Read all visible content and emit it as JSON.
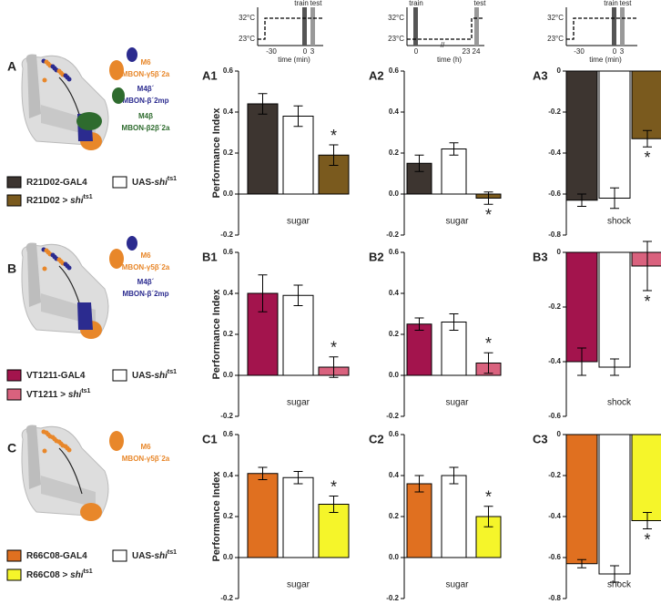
{
  "rows": [
    {
      "label": "A",
      "neurons": [
        {
          "name": "M6",
          "full": "MBON-γ5β´2a",
          "color": "#e8872a"
        },
        {
          "name": "M4β´",
          "full": "MBON-β´2mp",
          "color": "#2b2b8f"
        },
        {
          "name": "M4β",
          "full": "MBON-β2β´2a",
          "color": "#2e6b2e"
        }
      ],
      "legend": [
        {
          "text": "R21D02-GAL4",
          "color": "#3d3530"
        },
        {
          "text": "UAS-",
          "italic": "shi",
          "sup": "ts1",
          "color": "#ffffff"
        },
        {
          "text": "R21D02 > ",
          "italic": "shi",
          "sup": "ts1",
          "color": "#7a5a1e"
        }
      ]
    },
    {
      "label": "B",
      "neurons": [
        {
          "name": "M6",
          "full": "MBON-γ5β´2a",
          "color": "#e8872a"
        },
        {
          "name": "M4β´",
          "full": "MBON-β´2mp",
          "color": "#2b2b8f"
        }
      ],
      "legend": [
        {
          "text": "VT1211-GAL4",
          "color": "#a3144d"
        },
        {
          "text": "UAS-",
          "italic": "shi",
          "sup": "ts1",
          "color": "#ffffff"
        },
        {
          "text": "VT1211 > ",
          "italic": "shi",
          "sup": "ts1",
          "color": "#d9627e"
        }
      ]
    },
    {
      "label": "C",
      "neurons": [
        {
          "name": "M6",
          "full": "MBON-γ5β´2a",
          "color": "#e8872a"
        }
      ],
      "legend": [
        {
          "text": "R66C08-GAL4",
          "color": "#e07020"
        },
        {
          "text": "UAS-",
          "italic": "shi",
          "sup": "ts1",
          "color": "#ffffff"
        },
        {
          "text": "R66C08 > ",
          "italic": "shi",
          "sup": "ts1",
          "color": "#f5f52a"
        }
      ]
    }
  ],
  "protocols": [
    {
      "train": "train",
      "test": "test",
      "hot": "32°C",
      "cold": "23°C",
      "ticks": [
        "-30",
        "0",
        "3"
      ],
      "xlabel": "time (min)"
    },
    {
      "train": "train",
      "test": "test",
      "hot": "32°C",
      "cold": "23°C",
      "ticks": [
        "0",
        "23",
        "24"
      ],
      "xlabel": "time (h)",
      "break": "//"
    },
    {
      "train": "train",
      "test": "test",
      "hot": "32°C",
      "cold": "23°C",
      "ticks": [
        "-30",
        "0",
        "3"
      ],
      "xlabel": "time (min)"
    }
  ],
  "chart_data": [
    {
      "type": "bar",
      "title": "A1",
      "ylabel": "Performance Index",
      "xlabel": "sugar",
      "values": [
        0.44,
        0.38,
        0.19
      ],
      "errors": [
        0.05,
        0.05,
        0.05
      ],
      "colors": [
        "#3d3530",
        "#ffffff",
        "#7a5a1e"
      ],
      "ylim": [
        -0.2,
        0.6
      ],
      "yticks": [
        -0.2,
        {
          "value": 0,
          "label": "0.0"
        },
        0.2,
        0.4,
        0.6
      ],
      "marker": "*",
      "significant": [
        false,
        false,
        true
      ]
    },
    {
      "type": "bar",
      "title": "A2",
      "xlabel": "sugar",
      "values": [
        0.15,
        0.22,
        -0.02
      ],
      "errors": [
        0.04,
        0.03,
        0.03
      ],
      "colors": [
        "#3d3530",
        "#ffffff",
        "#7a5a1e"
      ],
      "ylim": [
        -0.2,
        0.6
      ],
      "yticks": [
        -0.2,
        {
          "value": 0,
          "label": "0.0"
        },
        0.2,
        0.4,
        0.6
      ],
      "marker": "*",
      "significant": [
        false,
        false,
        true
      ]
    },
    {
      "type": "bar",
      "title": "A3",
      "xlabel": "shock",
      "values": [
        -0.63,
        -0.62,
        -0.33
      ],
      "errors": [
        0.03,
        0.05,
        0.04
      ],
      "colors": [
        "#3d3530",
        "#ffffff",
        "#7a5a1e"
      ],
      "ylim": [
        -0.8,
        0
      ],
      "yticks": [
        -0.8,
        -0.6,
        -0.4,
        -0.2,
        0
      ],
      "marker": "*",
      "significant": [
        false,
        false,
        true
      ]
    },
    {
      "type": "bar",
      "title": "B1",
      "ylabel": "Performance Index",
      "xlabel": "sugar",
      "values": [
        0.4,
        0.39,
        0.04
      ],
      "errors": [
        0.09,
        0.05,
        0.05
      ],
      "colors": [
        "#a3144d",
        "#ffffff",
        "#d9627e"
      ],
      "ylim": [
        -0.2,
        0.6
      ],
      "yticks": [
        -0.2,
        {
          "value": 0,
          "label": "0.0"
        },
        0.2,
        0.4,
        0.6
      ],
      "marker": "*",
      "significant": [
        false,
        false,
        true
      ]
    },
    {
      "type": "bar",
      "title": "B2",
      "xlabel": "sugar",
      "values": [
        0.25,
        0.26,
        0.06
      ],
      "errors": [
        0.03,
        0.04,
        0.05
      ],
      "colors": [
        "#a3144d",
        "#ffffff",
        "#d9627e"
      ],
      "ylim": [
        -0.2,
        0.6
      ],
      "yticks": [
        -0.2,
        {
          "value": 0,
          "label": "0.0"
        },
        0.2,
        0.4,
        0.6
      ],
      "marker": "*",
      "significant": [
        false,
        false,
        true
      ]
    },
    {
      "type": "bar",
      "title": "B3",
      "xlabel": "shock",
      "values": [
        -0.4,
        -0.42,
        -0.05
      ],
      "errors": [
        0.05,
        0.03,
        0.09
      ],
      "colors": [
        "#a3144d",
        "#ffffff",
        "#d9627e"
      ],
      "ylim": [
        -0.6,
        0
      ],
      "yticks": [
        -0.6,
        -0.4,
        -0.2,
        0
      ],
      "marker": "*",
      "significant": [
        false,
        false,
        true
      ]
    },
    {
      "type": "bar",
      "title": "C1",
      "ylabel": "Performance Index",
      "xlabel": "sugar",
      "values": [
        0.41,
        0.39,
        0.26
      ],
      "errors": [
        0.03,
        0.03,
        0.04
      ],
      "colors": [
        "#e07020",
        "#ffffff",
        "#f5f52a"
      ],
      "ylim": [
        -0.2,
        0.6
      ],
      "yticks": [
        -0.2,
        {
          "value": 0,
          "label": "0.0"
        },
        0.2,
        0.4,
        0.6
      ],
      "marker": "*",
      "significant": [
        false,
        false,
        true
      ]
    },
    {
      "type": "bar",
      "title": "C2",
      "xlabel": "sugar",
      "values": [
        0.36,
        0.4,
        0.2
      ],
      "errors": [
        0.04,
        0.04,
        0.05
      ],
      "colors": [
        "#e07020",
        "#ffffff",
        "#f5f52a"
      ],
      "ylim": [
        -0.2,
        0.6
      ],
      "yticks": [
        -0.2,
        {
          "value": 0,
          "label": "0.0"
        },
        0.2,
        0.4,
        0.6
      ],
      "marker": "*",
      "significant": [
        false,
        false,
        true
      ]
    },
    {
      "type": "bar",
      "title": "C3",
      "xlabel": "shock",
      "values": [
        -0.63,
        -0.68,
        -0.42
      ],
      "errors": [
        0.02,
        0.04,
        0.04
      ],
      "colors": [
        "#e07020",
        "#ffffff",
        "#f5f52a"
      ],
      "ylim": [
        -0.8,
        0
      ],
      "yticks": [
        -0.8,
        -0.6,
        -0.4,
        -0.2,
        0
      ],
      "marker": "*",
      "significant": [
        false,
        false,
        true
      ]
    }
  ]
}
